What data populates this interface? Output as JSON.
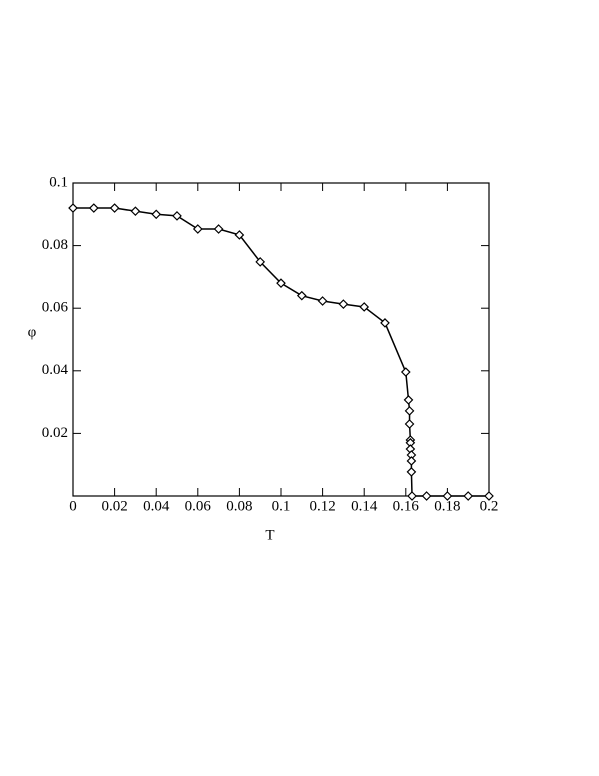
{
  "chart_data": {
    "type": "line",
    "x_label": "T",
    "y_label": "φ",
    "x": [
      0,
      0.01,
      0.02,
      0.03,
      0.04,
      0.05,
      0.06,
      0.07,
      0.08,
      0.09,
      0.1,
      0.11,
      0.12,
      0.13,
      0.14,
      0.15,
      0.16,
      0.1613,
      0.1618,
      0.1618,
      0.1622,
      0.1622,
      0.1622,
      0.1627,
      0.1627,
      0.1627,
      0.163,
      0.17,
      0.18,
      0.19,
      0.2
    ],
    "series": [
      {
        "color": "#000000",
        "marker": "diamond",
        "values": [
          0.092,
          0.092,
          0.092,
          0.091,
          0.09,
          0.0895,
          0.0853,
          0.0853,
          0.0834,
          0.0748,
          0.068,
          0.064,
          0.0623,
          0.0613,
          0.0604,
          0.0553,
          0.0396,
          0.0307,
          0.0272,
          0.023,
          0.0179,
          0.017,
          0.015,
          0.0131,
          0.0112,
          0.0077,
          0,
          0,
          0,
          0,
          0
        ]
      }
    ],
    "xlim": [
      0,
      0.2
    ],
    "ylim": [
      0,
      0.1
    ],
    "xticks": [
      0,
      0.02,
      0.04,
      0.06,
      0.08,
      0.1,
      0.12,
      0.14,
      0.16,
      0.18,
      0.2
    ],
    "yticks": [
      0.02,
      0.04,
      0.06,
      0.08,
      0.1
    ],
    "grid": false
  }
}
